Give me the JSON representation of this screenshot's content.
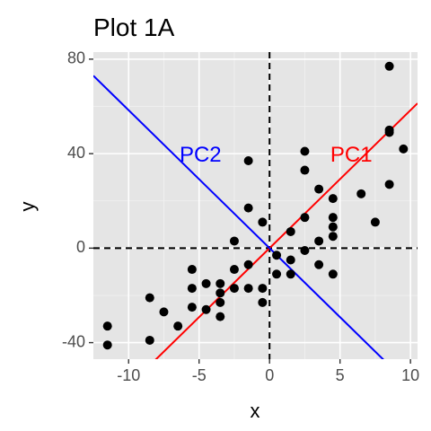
{
  "chart_data": {
    "type": "scatter",
    "title": "Plot 1A",
    "xlabel": "x",
    "ylabel": "y",
    "xlim": [
      -12.5,
      10.5
    ],
    "ylim": [
      -47,
      83
    ],
    "x_ticks": [
      -10,
      -5,
      0,
      5,
      10
    ],
    "y_ticks": [
      -40,
      0,
      40,
      80
    ],
    "x_tick_labels": [
      "-10",
      "-5",
      "0",
      "5",
      "10"
    ],
    "y_tick_labels": [
      "-40",
      "0",
      "40",
      "80"
    ],
    "grid": true,
    "background": "#e5e5e5",
    "points": [
      {
        "x": -11.5,
        "y": -33
      },
      {
        "x": -11.5,
        "y": -41
      },
      {
        "x": -8.5,
        "y": -21
      },
      {
        "x": -8.5,
        "y": -39
      },
      {
        "x": -7.5,
        "y": -27
      },
      {
        "x": -6.5,
        "y": -33
      },
      {
        "x": -5.5,
        "y": -9
      },
      {
        "x": -5.5,
        "y": -17
      },
      {
        "x": -5.5,
        "y": -25
      },
      {
        "x": -4.5,
        "y": -15
      },
      {
        "x": -4.5,
        "y": -26
      },
      {
        "x": -3.5,
        "y": -15
      },
      {
        "x": -3.5,
        "y": -19
      },
      {
        "x": -3.5,
        "y": -23
      },
      {
        "x": -3.5,
        "y": -29
      },
      {
        "x": -2.5,
        "y": -9
      },
      {
        "x": -2.5,
        "y": -17
      },
      {
        "x": -2.5,
        "y": 3
      },
      {
        "x": -1.5,
        "y": -17
      },
      {
        "x": -1.5,
        "y": -7
      },
      {
        "x": -1.5,
        "y": 17
      },
      {
        "x": -1.5,
        "y": 37
      },
      {
        "x": -0.5,
        "y": 11
      },
      {
        "x": -0.5,
        "y": -17
      },
      {
        "x": -0.5,
        "y": -23
      },
      {
        "x": 0.5,
        "y": -3
      },
      {
        "x": 0.5,
        "y": -11
      },
      {
        "x": 1.5,
        "y": -5
      },
      {
        "x": 1.5,
        "y": -11
      },
      {
        "x": 1.5,
        "y": 7
      },
      {
        "x": 2.5,
        "y": 41
      },
      {
        "x": 2.5,
        "y": 33
      },
      {
        "x": 2.5,
        "y": 13
      },
      {
        "x": 2.5,
        "y": -1
      },
      {
        "x": 3.5,
        "y": 25
      },
      {
        "x": 3.5,
        "y": 3
      },
      {
        "x": 3.5,
        "y": -7
      },
      {
        "x": 4.5,
        "y": 21
      },
      {
        "x": 4.5,
        "y": 13
      },
      {
        "x": 4.5,
        "y": 9
      },
      {
        "x": 4.5,
        "y": 5
      },
      {
        "x": 4.5,
        "y": -11
      },
      {
        "x": 6.5,
        "y": 23
      },
      {
        "x": 7.5,
        "y": 11
      },
      {
        "x": 8.5,
        "y": 77
      },
      {
        "x": 8.5,
        "y": 49
      },
      {
        "x": 8.5,
        "y": 50
      },
      {
        "x": 8.5,
        "y": 27
      },
      {
        "x": 9.5,
        "y": 42
      }
    ],
    "reference_lines": [
      {
        "orientation": "vertical",
        "value": 0,
        "style": "dashed",
        "color": "#000000"
      },
      {
        "orientation": "horizontal",
        "value": 0,
        "style": "dashed",
        "color": "#000000"
      }
    ],
    "pc_lines": [
      {
        "name": "PC1",
        "slope": 5.84,
        "intercept": 0,
        "color": "#ff0000",
        "label_x": 5.8,
        "label_y": 39
      },
      {
        "name": "PC2",
        "slope": -5.84,
        "intercept": 0,
        "color": "#0000ff",
        "label_x": -4.9,
        "label_y": 39
      }
    ]
  }
}
